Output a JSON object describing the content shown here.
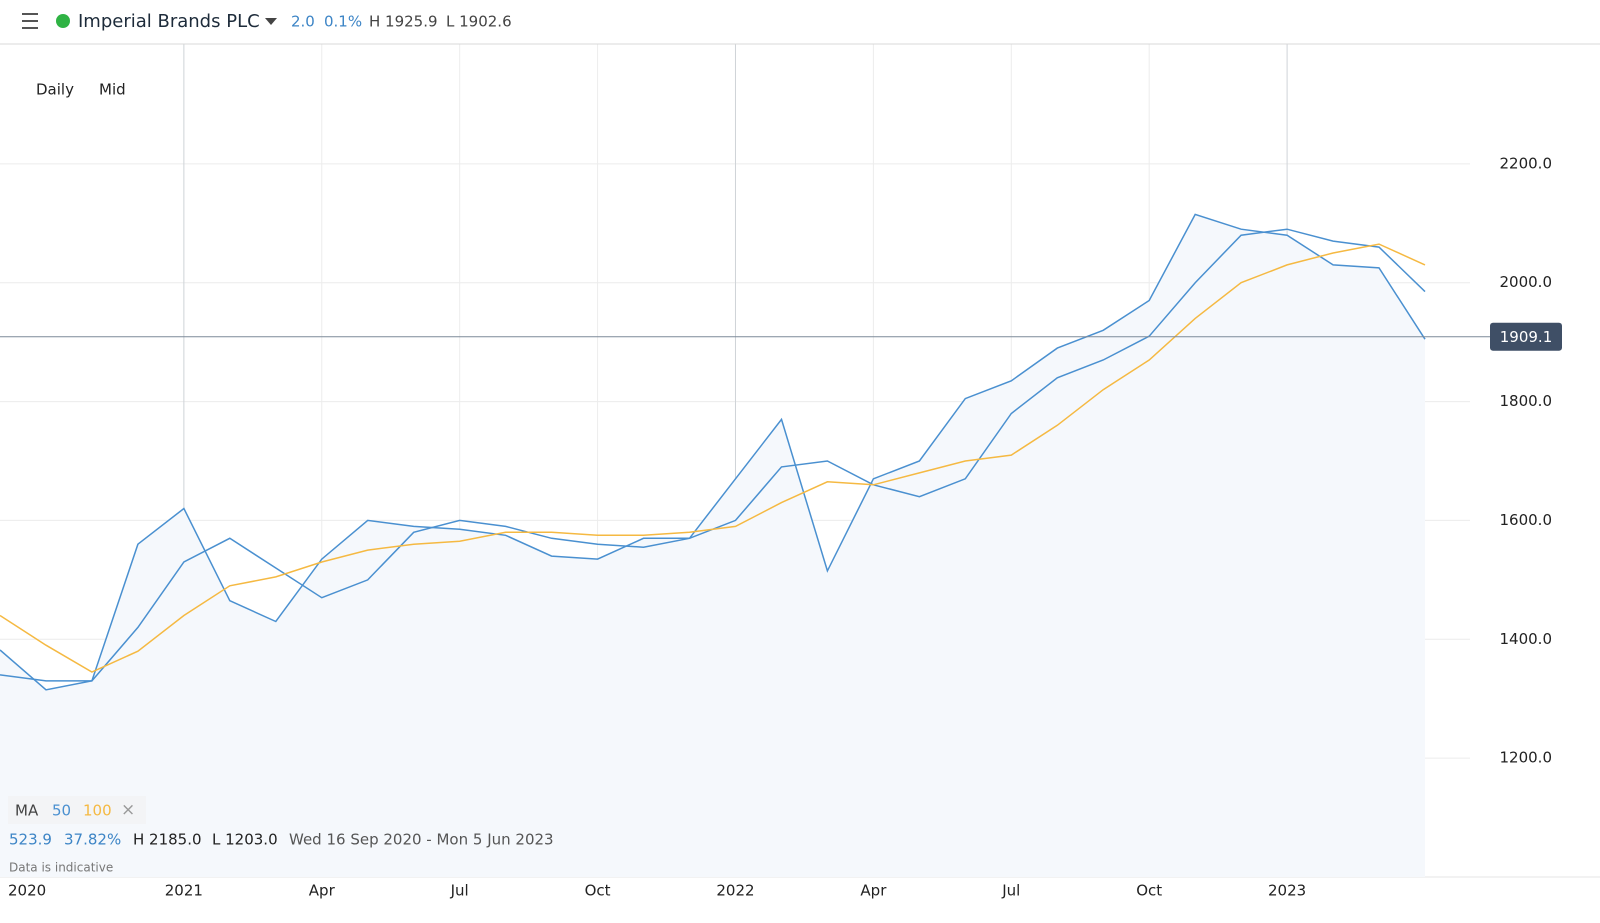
{
  "header": {
    "title": "Imperial Brands PLC",
    "change": "2.0",
    "change_pct": "0.1%",
    "high": "H 1925.9",
    "low": "L 1902.6"
  },
  "controls": {
    "interval": "Daily",
    "price_type": "Mid"
  },
  "legend": {
    "label": "MA",
    "close": "×"
  },
  "stats": {
    "change": "523.9",
    "change_pct": "37.82%",
    "high": "H 2185.0",
    "low": "L 1203.0",
    "range": "Wed 16 Sep 2020 - Mon 5 Jun 2023"
  },
  "note": "Data is indicative",
  "chart_data": {
    "type": "line",
    "x": [
      "2020-09",
      "2020-10",
      "2020-11",
      "2020-12",
      "2021-01",
      "2021-02",
      "2021-03",
      "2021-04",
      "2021-05",
      "2021-06",
      "2021-07",
      "2021-08",
      "2021-09",
      "2021-10",
      "2021-11",
      "2021-12",
      "2022-01",
      "2022-02",
      "2022-03",
      "2022-04",
      "2022-05",
      "2022-06",
      "2022-07",
      "2022-08",
      "2022-09",
      "2022-10",
      "2022-11",
      "2022-12",
      "2023-01",
      "2023-02",
      "2023-03",
      "2023-04"
    ],
    "series": [
      {
        "color": "#4a90d0",
        "area": true,
        "values": [
          1382,
          1315,
          1330,
          1560,
          1620,
          1465,
          1430,
          1535,
          1600,
          1590,
          1585,
          1575,
          1540,
          1535,
          1570,
          1570,
          1670,
          1770,
          1515,
          1670,
          1700,
          1805,
          1835,
          1890,
          1920,
          1970,
          2115,
          2090,
          2080,
          2030,
          2025,
          1905
        ]
      },
      {
        "name": "50",
        "color": "#4a90d0",
        "values": [
          1340,
          1330,
          1330,
          1420,
          1530,
          1570,
          1520,
          1470,
          1500,
          1580,
          1600,
          1590,
          1570,
          1560,
          1555,
          1570,
          1600,
          1690,
          1700,
          1660,
          1640,
          1670,
          1780,
          1840,
          1870,
          1910,
          2000,
          2080,
          2090,
          2070,
          2060,
          1985
        ]
      },
      {
        "name": "100",
        "color": "#f5b942",
        "values": [
          1440,
          1390,
          1345,
          1380,
          1440,
          1490,
          1505,
          1530,
          1550,
          1560,
          1565,
          1580,
          1580,
          1575,
          1575,
          1580,
          1590,
          1630,
          1665,
          1660,
          1680,
          1700,
          1710,
          1760,
          1820,
          1870,
          1940,
          2000,
          2030,
          2050,
          2065,
          2030
        ]
      }
    ],
    "last_price": 1909.1,
    "xlim": [
      "2020-09",
      "2023-04"
    ],
    "xticks": [
      {
        "value": "2020-09",
        "label": "2020"
      },
      {
        "value": "2021-01",
        "label": "2021"
      },
      {
        "value": "2021-04",
        "label": "Apr"
      },
      {
        "value": "2021-07",
        "label": "Jul"
      },
      {
        "value": "2021-10",
        "label": "Oct"
      },
      {
        "value": "2022-01",
        "label": "2022"
      },
      {
        "value": "2022-04",
        "label": "Apr"
      },
      {
        "value": "2022-07",
        "label": "Jul"
      },
      {
        "value": "2022-10",
        "label": "Oct"
      },
      {
        "value": "2023-01",
        "label": "2023"
      }
    ],
    "ylim": [
      1000,
      2400
    ],
    "yticks": [
      {
        "value": 1200,
        "label": "1200.0"
      },
      {
        "value": 1400,
        "label": "1400.0"
      },
      {
        "value": 1600,
        "label": "1600.0"
      },
      {
        "value": 1800,
        "label": "1800.0"
      },
      {
        "value": 2000,
        "label": "2000.0"
      },
      {
        "value": 2200,
        "label": "2200.0"
      }
    ],
    "grid": true
  }
}
